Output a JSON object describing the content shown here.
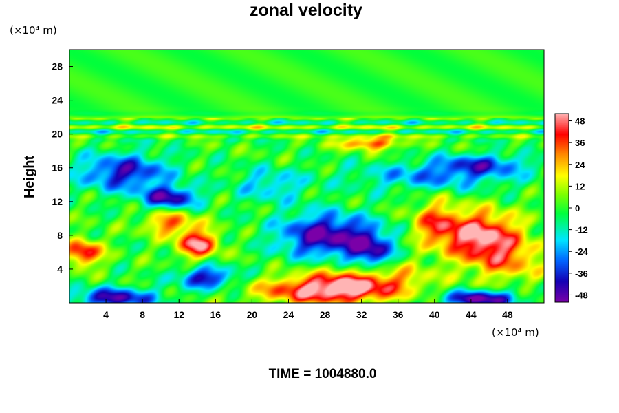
{
  "chart_data": {
    "type": "heatmap",
    "title": "zonal velocity",
    "ylabel": "Height",
    "xlabel": "",
    "x_unit": "(×10⁴ m)",
    "y_unit": "(×10⁴ m)",
    "xlim": [
      0,
      52
    ],
    "ylim": [
      0,
      30
    ],
    "x_ticks": [
      4,
      8,
      12,
      16,
      20,
      24,
      28,
      32,
      36,
      40,
      44,
      48
    ],
    "y_ticks": [
      4,
      8,
      12,
      16,
      20,
      24,
      28
    ],
    "colorbar": {
      "range": [
        -52,
        52
      ],
      "ticks": [
        48,
        36,
        24,
        12,
        0,
        -12,
        -24,
        -36,
        -48
      ],
      "colormap": [
        "#7a00a8",
        "#1400b4",
        "#0064ff",
        "#00e6ff",
        "#00ff3c",
        "#7dff00",
        "#ffff00",
        "#ff8c00",
        "#ff0000",
        "#ffb4b4"
      ]
    },
    "features": [
      {
        "x": 28,
        "y": 1.5,
        "value": 52,
        "sx": 7.0,
        "sy": 1.6
      },
      {
        "x": 33,
        "y": 3.0,
        "value": 30,
        "sx": 6.0,
        "sy": 2.0
      },
      {
        "x": 45,
        "y": 8.0,
        "value": 52,
        "sx": 4.2,
        "sy": 2.8
      },
      {
        "x": 40,
        "y": 9.5,
        "value": 30,
        "sx": 2.5,
        "sy": 2.5
      },
      {
        "x": 48,
        "y": 5.0,
        "value": 25,
        "sx": 4.0,
        "sy": 2.5
      },
      {
        "x": 14,
        "y": 7.0,
        "value": 50,
        "sx": 2.2,
        "sy": 1.6
      },
      {
        "x": 11,
        "y": 9.5,
        "value": 32,
        "sx": 2.8,
        "sy": 1.4
      },
      {
        "x": 1.5,
        "y": 6.0,
        "value": 45,
        "sx": 2.0,
        "sy": 1.5
      },
      {
        "x": 33,
        "y": 19.0,
        "value": 35,
        "sx": 3.5,
        "sy": 0.8
      },
      {
        "x": 28,
        "y": 8.0,
        "value": -50,
        "sx": 5.0,
        "sy": 2.6
      },
      {
        "x": 33,
        "y": 6.0,
        "value": -40,
        "sx": 2.5,
        "sy": 2.5
      },
      {
        "x": 45,
        "y": 0.5,
        "value": -52,
        "sx": 4.0,
        "sy": 1.0
      },
      {
        "x": 5,
        "y": 0.6,
        "value": -45,
        "sx": 4.5,
        "sy": 1.2
      },
      {
        "x": 15,
        "y": 3.0,
        "value": -42,
        "sx": 3.0,
        "sy": 1.3
      },
      {
        "x": 11,
        "y": 12.5,
        "value": -45,
        "sx": 3.0,
        "sy": 1.3
      },
      {
        "x": 6,
        "y": 15.5,
        "value": -40,
        "sx": 5.0,
        "sy": 2.2
      },
      {
        "x": 40,
        "y": 15.0,
        "value": -25,
        "sx": 9.0,
        "sy": 1.6
      },
      {
        "x": 45,
        "y": 16.5,
        "value": -30,
        "sx": 5.0,
        "sy": 1.2
      },
      {
        "x": 22,
        "y": 14.0,
        "value": -20,
        "sx": 4.0,
        "sy": 2.0
      }
    ]
  },
  "footer": {
    "time_label": "TIME = 1004880.0"
  }
}
